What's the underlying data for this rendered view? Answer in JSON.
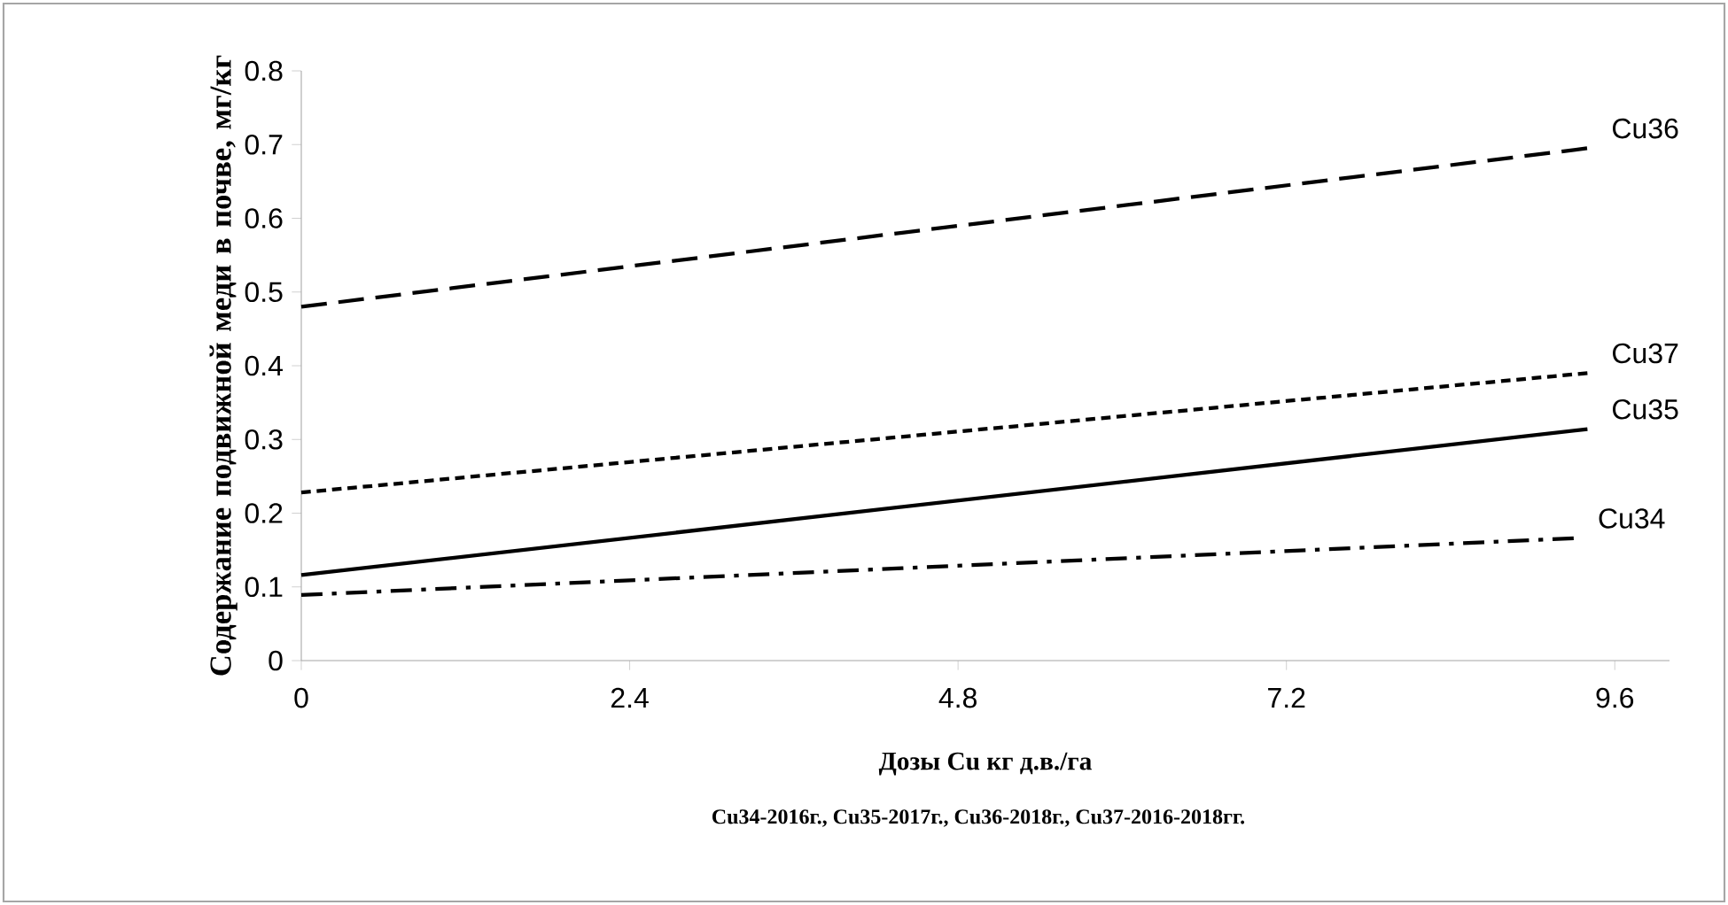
{
  "chart_data": {
    "type": "line",
    "xlabel": "Дозы Cu кг д.в./га",
    "ylabel": "Содержание подвижной меди в почве, мг/кг",
    "annotations": [
      "Cu34-2016г., Cu35-2017г., Cu36-2018г., Cu37-2016-2018гг."
    ],
    "x": [
      0,
      9.4
    ],
    "series": [
      {
        "name": "Cu36",
        "color": "#000000",
        "line_style": "longdash",
        "values": [
          0.48,
          0.695
        ]
      },
      {
        "name": "Cu37",
        "color": "#000000",
        "line_style": "dashed",
        "values": [
          0.228,
          0.39
        ]
      },
      {
        "name": "Cu35",
        "color": "#000000",
        "line_style": "solid",
        "values": [
          0.116,
          0.314
        ]
      },
      {
        "name": "Cu34",
        "color": "#000000",
        "line_style": "dashdot",
        "x": [
          0,
          9.3
        ],
        "values": [
          0.089,
          0.166
        ]
      }
    ],
    "xlim": [
      0,
      10
    ],
    "xticks": [
      0,
      2.4,
      4.8,
      7.2,
      9.6
    ],
    "ylim": [
      0,
      0.8
    ],
    "yticks": [
      0,
      0.1,
      0.2,
      0.3,
      0.4,
      0.5,
      0.6,
      0.7,
      0.8
    ],
    "grid": false
  }
}
